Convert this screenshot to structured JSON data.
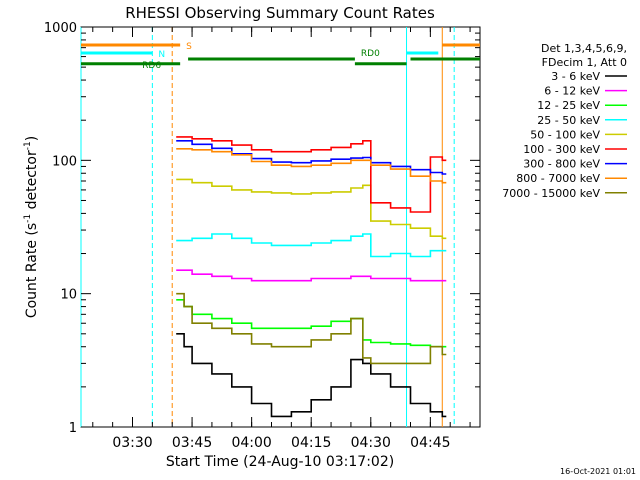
{
  "chart_data": {
    "type": "line",
    "title": "RHESSI Observing Summary Count Rates",
    "xlabel": "Start Time (24-Aug-10 03:17:02)",
    "ylabel_parts": [
      "Count Rate (s",
      "-1",
      " detector",
      "-1",
      ")"
    ],
    "y_scale": "log",
    "ylim": [
      1,
      1000
    ],
    "y_ticks": [
      {
        "value": 1,
        "label": "1"
      },
      {
        "value": 10,
        "label": "10"
      },
      {
        "value": 100,
        "label": "100"
      },
      {
        "value": 1000,
        "label": "1000"
      }
    ],
    "xlim": [
      "03:17:02",
      "04:57:30"
    ],
    "x_ticks": [
      "03:30",
      "03:45",
      "04:00",
      "04:15",
      "04:30",
      "04:45"
    ],
    "legend": {
      "placement": "right",
      "header": [
        "Det 1,3,4,5,6,9,",
        "FDecim 1, Att 0"
      ]
    },
    "series": [
      {
        "name": "3 - 6 keV",
        "color": "#000000",
        "x": [
          "03:41",
          "03:43",
          "03:45",
          "03:50",
          "03:55",
          "04:00",
          "04:05",
          "04:10",
          "04:15",
          "04:20",
          "04:25",
          "04:28",
          "04:30",
          "04:35",
          "04:40",
          "04:45",
          "04:48"
        ],
        "y": [
          5,
          4,
          3,
          2.5,
          2,
          1.5,
          1.2,
          1.3,
          1.6,
          2,
          3.2,
          3,
          2.5,
          2,
          1.5,
          1.3,
          1.2
        ]
      },
      {
        "name": "6 - 12 keV",
        "color": "#ff00ff",
        "x": [
          "03:41",
          "03:45",
          "03:50",
          "03:55",
          "04:00",
          "04:05",
          "04:10",
          "04:15",
          "04:20",
          "04:25",
          "04:28",
          "04:30",
          "04:35",
          "04:40",
          "04:45",
          "04:48"
        ],
        "y": [
          15,
          14,
          13.5,
          13,
          12.5,
          12.5,
          12.5,
          13,
          13,
          13.5,
          13.5,
          13,
          13,
          12.5,
          12.5,
          12.5
        ]
      },
      {
        "name": "12 - 25 keV",
        "color": "#00ff00",
        "x": [
          "03:41",
          "03:43",
          "03:45",
          "03:50",
          "03:55",
          "04:00",
          "04:05",
          "04:10",
          "04:15",
          "04:20",
          "04:25",
          "04:28",
          "04:30",
          "04:35",
          "04:40",
          "04:45",
          "04:48"
        ],
        "y": [
          9,
          8,
          7,
          6.5,
          6,
          5.5,
          5.5,
          5.5,
          5.7,
          6.2,
          6.5,
          4.5,
          4.3,
          4.2,
          4.1,
          4,
          4
        ]
      },
      {
        "name": "25 - 50 keV",
        "color": "#00ffff",
        "x": [
          "03:41",
          "03:45",
          "03:50",
          "03:55",
          "04:00",
          "04:05",
          "04:10",
          "04:15",
          "04:20",
          "04:25",
          "04:28",
          "04:30",
          "04:35",
          "04:40",
          "04:45",
          "04:48"
        ],
        "y": [
          25,
          26,
          28,
          26,
          24,
          23,
          23,
          24,
          25,
          27,
          28,
          19,
          20,
          19,
          21,
          21
        ]
      },
      {
        "name": "50 - 100 keV",
        "color": "#cccc00",
        "x": [
          "03:41",
          "03:45",
          "03:50",
          "03:55",
          "04:00",
          "04:05",
          "04:10",
          "04:15",
          "04:20",
          "04:25",
          "04:28",
          "04:30",
          "04:35",
          "04:40",
          "04:45",
          "04:48"
        ],
        "y": [
          72,
          68,
          64,
          60,
          58,
          57,
          56,
          57,
          58,
          62,
          65,
          35,
          33,
          31,
          27,
          26
        ]
      },
      {
        "name": "100 - 300 keV",
        "color": "#ff0000",
        "x": [
          "03:41",
          "03:45",
          "03:50",
          "03:55",
          "04:00",
          "04:05",
          "04:10",
          "04:15",
          "04:20",
          "04:25",
          "04:28",
          "04:30",
          "04:35",
          "04:40",
          "04:45",
          "04:48"
        ],
        "y": [
          150,
          145,
          140,
          130,
          120,
          116,
          116,
          120,
          125,
          133,
          140,
          48,
          44,
          41,
          106,
          100
        ]
      },
      {
        "name": "300 - 800 keV",
        "color": "#0000ff",
        "x": [
          "03:41",
          "03:45",
          "03:50",
          "03:55",
          "04:00",
          "04:05",
          "04:10",
          "04:15",
          "04:20",
          "04:25",
          "04:28",
          "04:30",
          "04:35",
          "04:40",
          "04:45",
          "04:48"
        ],
        "y": [
          140,
          132,
          123,
          112,
          103,
          97,
          96,
          99,
          102,
          104,
          105,
          96,
          90,
          85,
          81,
          79
        ]
      },
      {
        "name": "800 - 7000 keV",
        "color": "#ff8800",
        "x": [
          "03:41",
          "03:45",
          "03:50",
          "03:55",
          "04:00",
          "04:05",
          "04:10",
          "04:15",
          "04:20",
          "04:25",
          "04:28",
          "04:30",
          "04:35",
          "04:40",
          "04:45",
          "04:48"
        ],
        "y": [
          122,
          120,
          116,
          110,
          98,
          92,
          90,
          92,
          95,
          100,
          100,
          92,
          86,
          76,
          70,
          68
        ]
      },
      {
        "name": "7000 - 15000 keV",
        "color": "#808000",
        "x": [
          "03:41",
          "03:43",
          "03:45",
          "03:50",
          "03:55",
          "04:00",
          "04:05",
          "04:10",
          "04:15",
          "04:20",
          "04:25",
          "04:28",
          "04:30",
          "04:35",
          "04:40",
          "04:45",
          "04:48"
        ],
        "y": [
          10,
          8,
          6,
          5.5,
          5,
          4.2,
          4,
          4,
          4.5,
          5,
          6.5,
          3.3,
          3,
          3,
          3,
          4,
          3.5
        ]
      }
    ],
    "status_bars": [
      {
        "label": "S",
        "color": "#ff8800",
        "level_frac": 0.955,
        "segments": [
          [
            "03:17:02",
            "03:42"
          ],
          [
            "04:48",
            "04:57:30"
          ]
        ]
      },
      {
        "label": "N",
        "color": "#00ffff",
        "level_frac": 0.935,
        "segments": [
          [
            "03:17:02",
            "03:35"
          ],
          [
            "04:39",
            "04:47"
          ]
        ]
      },
      {
        "label": "RD0",
        "color": "#008000",
        "level_frac": 0.92,
        "segments": [
          [
            "03:44",
            "04:26"
          ],
          [
            "04:40",
            "04:57:30"
          ]
        ]
      },
      {
        "label": "RD6",
        "color": "#008000",
        "level_frac": 0.908,
        "segments": [
          [
            "03:17:02",
            "03:42"
          ],
          [
            "04:26",
            "04:39"
          ]
        ]
      }
    ],
    "vlines": [
      {
        "x": "03:17:02",
        "color": "#00ffff",
        "dashed": false
      },
      {
        "x": "03:35",
        "color": "#00ffff",
        "dashed": true
      },
      {
        "x": "03:40",
        "color": "#ff8800",
        "dashed": true
      },
      {
        "x": "04:39",
        "color": "#00ffff",
        "dashed": false
      },
      {
        "x": "04:48",
        "color": "#ff8800",
        "dashed": false
      },
      {
        "x": "04:51",
        "color": "#00ffff",
        "dashed": true
      }
    ],
    "footer_timestamp": "16-Oct-2021 01:01"
  }
}
